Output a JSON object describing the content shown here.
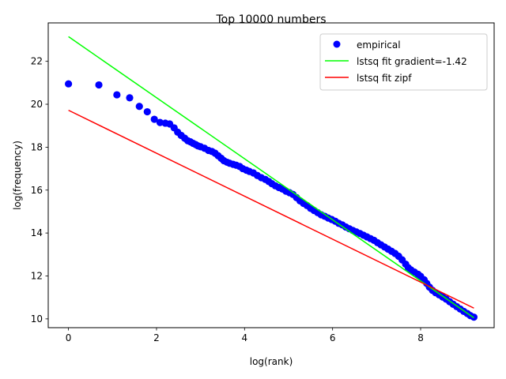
{
  "chart_data": {
    "type": "scatter",
    "title": "Top 10000 numbers",
    "xlabel": "log(rank)",
    "ylabel": "log(frequency)",
    "xlim": [
      -0.46,
      9.67
    ],
    "ylim": [
      9.59,
      23.79
    ],
    "xticks": [
      0,
      2,
      4,
      6,
      8
    ],
    "yticks": [
      10,
      12,
      14,
      16,
      18,
      20,
      22
    ],
    "xtick_labels": [
      "0",
      "2",
      "4",
      "6",
      "8"
    ],
    "ytick_labels": [
      "10",
      "12",
      "14",
      "16",
      "18",
      "20",
      "22"
    ],
    "grid": false,
    "legend_position": "top-right",
    "series": [
      {
        "name": "empirical",
        "kind": "scatter",
        "color": "#0000ff",
        "points": [
          [
            0.0,
            20.95
          ],
          [
            0.69,
            20.9
          ],
          [
            1.1,
            20.44
          ],
          [
            1.39,
            20.3
          ],
          [
            1.61,
            19.9
          ],
          [
            1.79,
            19.65
          ],
          [
            1.95,
            19.3
          ],
          [
            2.08,
            19.15
          ],
          [
            2.2,
            19.12
          ],
          [
            2.3,
            19.08
          ],
          [
            2.4,
            18.9
          ],
          [
            2.48,
            18.7
          ],
          [
            2.56,
            18.55
          ],
          [
            2.64,
            18.42
          ],
          [
            2.71,
            18.3
          ],
          [
            2.77,
            18.25
          ],
          [
            2.83,
            18.18
          ],
          [
            2.89,
            18.12
          ],
          [
            2.94,
            18.06
          ],
          [
            3.0,
            18.02
          ],
          [
            3.09,
            17.95
          ],
          [
            3.18,
            17.85
          ],
          [
            3.26,
            17.8
          ],
          [
            3.33,
            17.72
          ],
          [
            3.4,
            17.6
          ],
          [
            3.47,
            17.48
          ],
          [
            3.53,
            17.37
          ],
          [
            3.6,
            17.3
          ],
          [
            3.66,
            17.25
          ],
          [
            3.74,
            17.2
          ],
          [
            3.81,
            17.16
          ],
          [
            3.89,
            17.1
          ],
          [
            3.96,
            17.0
          ],
          [
            4.04,
            16.93
          ],
          [
            4.11,
            16.87
          ],
          [
            4.2,
            16.8
          ],
          [
            4.29,
            16.68
          ],
          [
            4.38,
            16.58
          ],
          [
            4.47,
            16.5
          ],
          [
            4.55,
            16.4
          ],
          [
            4.62,
            16.3
          ],
          [
            4.7,
            16.2
          ],
          [
            4.78,
            16.12
          ],
          [
            4.86,
            16.05
          ],
          [
            4.94,
            15.95
          ],
          [
            5.02,
            15.88
          ],
          [
            5.1,
            15.8
          ],
          [
            5.18,
            15.65
          ],
          [
            5.26,
            15.5
          ],
          [
            5.34,
            15.38
          ],
          [
            5.42,
            15.28
          ],
          [
            5.5,
            15.15
          ],
          [
            5.58,
            15.05
          ],
          [
            5.66,
            14.95
          ],
          [
            5.74,
            14.85
          ],
          [
            5.82,
            14.78
          ],
          [
            5.9,
            14.7
          ],
          [
            5.98,
            14.63
          ],
          [
            6.06,
            14.55
          ],
          [
            6.14,
            14.45
          ],
          [
            6.22,
            14.38
          ],
          [
            6.3,
            14.28
          ],
          [
            6.38,
            14.2
          ],
          [
            6.46,
            14.12
          ],
          [
            6.54,
            14.05
          ],
          [
            6.62,
            13.98
          ],
          [
            6.7,
            13.9
          ],
          [
            6.78,
            13.82
          ],
          [
            6.86,
            13.74
          ],
          [
            6.94,
            13.66
          ],
          [
            7.02,
            13.55
          ],
          [
            7.1,
            13.45
          ],
          [
            7.18,
            13.35
          ],
          [
            7.26,
            13.25
          ],
          [
            7.34,
            13.15
          ],
          [
            7.42,
            13.05
          ],
          [
            7.5,
            12.92
          ],
          [
            7.58,
            12.75
          ],
          [
            7.66,
            12.55
          ],
          [
            7.72,
            12.38
          ],
          [
            7.78,
            12.28
          ],
          [
            7.86,
            12.18
          ],
          [
            7.94,
            12.08
          ],
          [
            8.0,
            11.98
          ],
          [
            8.08,
            11.82
          ],
          [
            8.14,
            11.65
          ],
          [
            8.2,
            11.48
          ],
          [
            8.27,
            11.33
          ],
          [
            8.34,
            11.22
          ],
          [
            8.42,
            11.12
          ],
          [
            8.5,
            11.02
          ],
          [
            8.58,
            10.92
          ],
          [
            8.66,
            10.8
          ],
          [
            8.74,
            10.68
          ],
          [
            8.82,
            10.57
          ],
          [
            8.9,
            10.46
          ],
          [
            8.98,
            10.35
          ],
          [
            9.06,
            10.25
          ],
          [
            9.13,
            10.15
          ],
          [
            9.21,
            10.08
          ]
        ]
      },
      {
        "name": "lstsq fit gradient=-1.42",
        "kind": "line",
        "color": "#00ff00",
        "x": [
          0.0,
          9.21
        ],
        "y": [
          23.15,
          10.05
        ]
      },
      {
        "name": "lstsq fit zipf",
        "kind": "line",
        "color": "#ff0000",
        "x": [
          0.0,
          9.21
        ],
        "y": [
          19.72,
          10.5
        ]
      }
    ]
  }
}
